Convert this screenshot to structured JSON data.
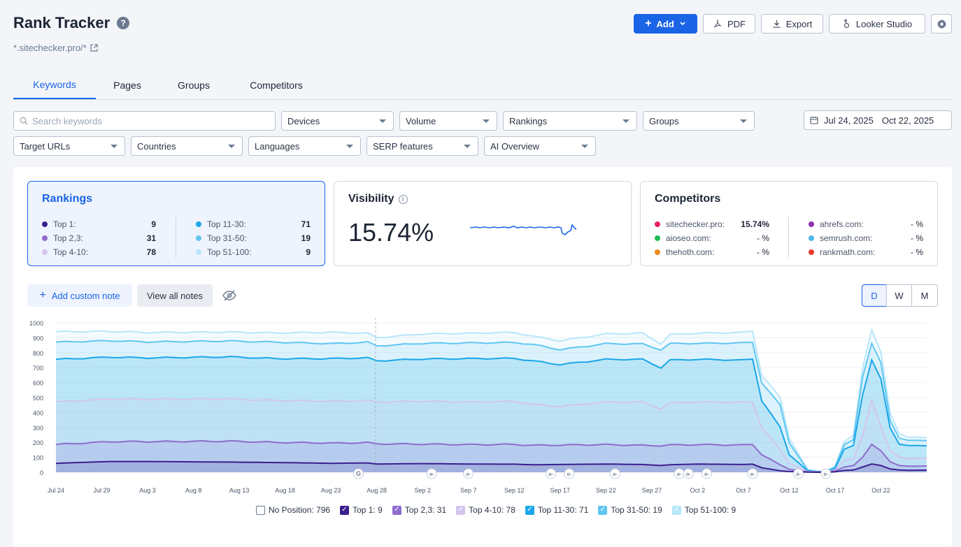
{
  "header": {
    "title": "Rank Tracker",
    "help_icon": "?",
    "subtitle": "*.sitechecker.pro/*"
  },
  "toolbar": {
    "add_label": "Add",
    "pdf_label": "PDF",
    "export_label": "Export",
    "looker_label": "Looker Studio"
  },
  "tabs": [
    {
      "label": "Keywords",
      "active": true
    },
    {
      "label": "Pages"
    },
    {
      "label": "Groups"
    },
    {
      "label": "Competitors"
    }
  ],
  "filters": {
    "search_placeholder": "Search keywords",
    "row1": [
      "Devices",
      "Volume",
      "Rankings",
      "Groups"
    ],
    "row2": [
      "Target URLs",
      "Countries",
      "Languages",
      "SERP features",
      "AI Overview"
    ],
    "date_start": "Jul 24, 2025",
    "date_end": "Oct 22, 2025"
  },
  "rankings_card": {
    "title": "Rankings",
    "left": [
      {
        "label": "Top 1:",
        "value": "9",
        "color": "#3b1f8e"
      },
      {
        "label": "Top 2,3:",
        "value": "31",
        "color": "#8e6ccc"
      },
      {
        "label": "Top 4-10:",
        "value": "78",
        "color": "#d2c5ee"
      }
    ],
    "right": [
      {
        "label": "Top 11-30:",
        "value": "71",
        "color": "#1ba6e8"
      },
      {
        "label": "Top 31-50:",
        "value": "19",
        "color": "#5fc6f2"
      },
      {
        "label": "Top 51-100:",
        "value": "9",
        "color": "#b8e6fa"
      }
    ]
  },
  "visibility_card": {
    "title": "Visibility",
    "value": "15.74%"
  },
  "competitors_card": {
    "title": "Competitors",
    "left": [
      {
        "label": "sitechecker.pro:",
        "value": "15.74%",
        "color": "#e6245c"
      },
      {
        "label": "aioseo.com:",
        "value": "- %",
        "color": "#1db954"
      },
      {
        "label": "thehoth.com:",
        "value": "- %",
        "color": "#f08a1c"
      }
    ],
    "right": [
      {
        "label": "ahrefs.com:",
        "value": "- %",
        "color": "#8e2fb0"
      },
      {
        "label": "semrush.com:",
        "value": "- %",
        "color": "#4fb6e8"
      },
      {
        "label": "rankmath.com:",
        "value": "- %",
        "color": "#e63a2e"
      }
    ]
  },
  "notes": {
    "add_label": "Add custom note",
    "view_label": "View all notes"
  },
  "period": [
    {
      "label": "D",
      "active": true
    },
    {
      "label": "W"
    },
    {
      "label": "M"
    }
  ],
  "chart_data": {
    "type": "area",
    "y_ticks": [
      "0",
      "100",
      "200",
      "300",
      "400",
      "500",
      "600",
      "700",
      "800",
      "900",
      "1000"
    ],
    "ylim": [
      0,
      1000
    ],
    "x_ticks": [
      "Jul 24",
      "Jul 29",
      "Aug 3",
      "Aug 8",
      "Aug 13",
      "Aug 18",
      "Aug 23",
      "Aug 28",
      "Sep 2",
      "Sep 7",
      "Sep 12",
      "Sep 17",
      "Sep 22",
      "Sep 27",
      "Oct 2",
      "Oct 7",
      "Oct 12",
      "Oct 17",
      "Oct 22"
    ],
    "note_markers": [
      "Aug 26",
      "Sep 3",
      "Sep 7",
      "Sep 16",
      "Sep 18",
      "Sep 23",
      "Sep 30",
      "Oct 1",
      "Oct 3",
      "Oct 8",
      "Oct 13",
      "Oct 16"
    ],
    "series": [
      {
        "name": "Top 51-100",
        "color": "#b8e6fa",
        "anchors": [
          [
            0,
            940
          ],
          [
            6,
            942
          ],
          [
            10,
            935
          ],
          [
            19,
            938
          ],
          [
            24,
            932
          ],
          [
            30,
            936
          ],
          [
            34,
            930
          ],
          [
            35,
            900
          ],
          [
            40,
            925
          ],
          [
            45,
            930
          ],
          [
            50,
            935
          ],
          [
            52,
            910
          ],
          [
            55,
            880
          ],
          [
            60,
            925
          ],
          [
            64,
            930
          ],
          [
            66,
            860
          ],
          [
            67,
            920
          ],
          [
            70,
            930
          ],
          [
            75,
            935
          ],
          [
            76,
            945
          ],
          [
            77,
            650
          ],
          [
            79,
            500
          ],
          [
            80,
            230
          ],
          [
            82,
            20
          ],
          [
            83,
            5
          ],
          [
            84,
            5
          ],
          [
            85,
            40
          ],
          [
            86,
            200
          ],
          [
            87,
            250
          ],
          [
            88,
            700
          ],
          [
            89,
            950
          ],
          [
            90,
            800
          ],
          [
            91,
            400
          ],
          [
            92,
            260
          ],
          [
            93,
            230
          ],
          [
            95,
            235
          ]
        ]
      },
      {
        "name": "Top 31-50",
        "color": "#5fc6f2",
        "anchors": [
          [
            0,
            870
          ],
          [
            6,
            880
          ],
          [
            10,
            872
          ],
          [
            19,
            878
          ],
          [
            24,
            870
          ],
          [
            30,
            860
          ],
          [
            34,
            870
          ],
          [
            35,
            845
          ],
          [
            40,
            862
          ],
          [
            45,
            865
          ],
          [
            50,
            868
          ],
          [
            52,
            855
          ],
          [
            55,
            820
          ],
          [
            60,
            860
          ],
          [
            64,
            858
          ],
          [
            66,
            820
          ],
          [
            67,
            860
          ],
          [
            70,
            862
          ],
          [
            75,
            865
          ],
          [
            76,
            870
          ],
          [
            77,
            600
          ],
          [
            79,
            450
          ],
          [
            80,
            200
          ],
          [
            82,
            15
          ],
          [
            83,
            5
          ],
          [
            84,
            5
          ],
          [
            85,
            35
          ],
          [
            86,
            180
          ],
          [
            87,
            220
          ],
          [
            88,
            640
          ],
          [
            89,
            860
          ],
          [
            90,
            730
          ],
          [
            91,
            350
          ],
          [
            92,
            230
          ],
          [
            93,
            210
          ],
          [
            95,
            215
          ]
        ]
      },
      {
        "name": "Top 11-30",
        "color": "#1ba6e8",
        "anchors": [
          [
            0,
            755
          ],
          [
            6,
            770
          ],
          [
            10,
            765
          ],
          [
            19,
            772
          ],
          [
            24,
            760
          ],
          [
            30,
            760
          ],
          [
            34,
            765
          ],
          [
            35,
            745
          ],
          [
            40,
            758
          ],
          [
            45,
            760
          ],
          [
            50,
            762
          ],
          [
            52,
            745
          ],
          [
            55,
            720
          ],
          [
            60,
            755
          ],
          [
            64,
            755
          ],
          [
            66,
            700
          ],
          [
            67,
            750
          ],
          [
            70,
            755
          ],
          [
            75,
            750
          ],
          [
            76,
            758
          ],
          [
            77,
            480
          ],
          [
            79,
            300
          ],
          [
            80,
            120
          ],
          [
            82,
            10
          ],
          [
            83,
            5
          ],
          [
            84,
            5
          ],
          [
            85,
            25
          ],
          [
            86,
            150
          ],
          [
            87,
            180
          ],
          [
            88,
            520
          ],
          [
            89,
            750
          ],
          [
            90,
            620
          ],
          [
            91,
            300
          ],
          [
            92,
            190
          ],
          [
            93,
            175
          ],
          [
            95,
            180
          ]
        ]
      },
      {
        "name": "Top 4-10",
        "color": "#d2c5ee",
        "anchors": [
          [
            0,
            470
          ],
          [
            6,
            490
          ],
          [
            10,
            488
          ],
          [
            19,
            490
          ],
          [
            24,
            480
          ],
          [
            30,
            475
          ],
          [
            34,
            478
          ],
          [
            35,
            470
          ],
          [
            40,
            475
          ],
          [
            45,
            470
          ],
          [
            50,
            474
          ],
          [
            52,
            455
          ],
          [
            55,
            440
          ],
          [
            60,
            470
          ],
          [
            64,
            470
          ],
          [
            66,
            425
          ],
          [
            67,
            465
          ],
          [
            70,
            470
          ],
          [
            75,
            468
          ],
          [
            76,
            470
          ],
          [
            77,
            300
          ],
          [
            79,
            150
          ],
          [
            80,
            60
          ],
          [
            82,
            5
          ],
          [
            83,
            3
          ],
          [
            84,
            3
          ],
          [
            85,
            15
          ],
          [
            86,
            80
          ],
          [
            87,
            90
          ],
          [
            88,
            250
          ],
          [
            89,
            480
          ],
          [
            90,
            300
          ],
          [
            91,
            150
          ],
          [
            92,
            100
          ],
          [
            93,
            90
          ],
          [
            95,
            95
          ]
        ]
      },
      {
        "name": "Top 2,3",
        "color": "#8e6ccc",
        "anchors": [
          [
            0,
            185
          ],
          [
            6,
            205
          ],
          [
            10,
            205
          ],
          [
            19,
            208
          ],
          [
            24,
            200
          ],
          [
            30,
            195
          ],
          [
            34,
            198
          ],
          [
            35,
            190
          ],
          [
            40,
            188
          ],
          [
            45,
            185
          ],
          [
            50,
            186
          ],
          [
            52,
            180
          ],
          [
            55,
            182
          ],
          [
            60,
            185
          ],
          [
            64,
            180
          ],
          [
            66,
            178
          ],
          [
            67,
            182
          ],
          [
            70,
            185
          ],
          [
            75,
            182
          ],
          [
            76,
            186
          ],
          [
            77,
            120
          ],
          [
            79,
            50
          ],
          [
            80,
            20
          ],
          [
            82,
            3
          ],
          [
            83,
            2
          ],
          [
            84,
            2
          ],
          [
            85,
            8
          ],
          [
            86,
            35
          ],
          [
            87,
            45
          ],
          [
            88,
            100
          ],
          [
            89,
            185
          ],
          [
            90,
            140
          ],
          [
            91,
            70
          ],
          [
            92,
            45
          ],
          [
            93,
            40
          ],
          [
            95,
            42
          ]
        ]
      },
      {
        "name": "Top 1",
        "color": "#3b1f8e",
        "anchors": [
          [
            0,
            60
          ],
          [
            6,
            72
          ],
          [
            10,
            72
          ],
          [
            19,
            68
          ],
          [
            24,
            65
          ],
          [
            30,
            60
          ],
          [
            34,
            62
          ],
          [
            35,
            55
          ],
          [
            40,
            58
          ],
          [
            45,
            55
          ],
          [
            50,
            54
          ],
          [
            52,
            50
          ],
          [
            55,
            52
          ],
          [
            60,
            55
          ],
          [
            64,
            52
          ],
          [
            66,
            45
          ],
          [
            67,
            50
          ],
          [
            70,
            55
          ],
          [
            75,
            52
          ],
          [
            76,
            54
          ],
          [
            77,
            30
          ],
          [
            79,
            10
          ],
          [
            80,
            5
          ],
          [
            82,
            1
          ],
          [
            83,
            0
          ],
          [
            84,
            0
          ],
          [
            85,
            3
          ],
          [
            86,
            12
          ],
          [
            87,
            15
          ],
          [
            88,
            35
          ],
          [
            89,
            55
          ],
          [
            90,
            45
          ],
          [
            91,
            22
          ],
          [
            92,
            15
          ],
          [
            93,
            13
          ],
          [
            95,
            14
          ]
        ]
      }
    ]
  },
  "bottom_legend": [
    {
      "label": "No Position: 796",
      "color": "#ffffff",
      "checked": false
    },
    {
      "label": "Top 1: 9",
      "color": "#3b1f8e",
      "checked": true
    },
    {
      "label": "Top 2,3: 31",
      "color": "#8e6ccc",
      "checked": true
    },
    {
      "label": "Top 4-10: 78",
      "color": "#d2c5ee",
      "checked": true
    },
    {
      "label": "Top 11-30: 71",
      "color": "#1ba6e8",
      "checked": true
    },
    {
      "label": "Top 31-50: 19",
      "color": "#5fc6f2",
      "checked": true
    },
    {
      "label": "Top 51-100: 9",
      "color": "#b8e6fa",
      "checked": true
    }
  ]
}
